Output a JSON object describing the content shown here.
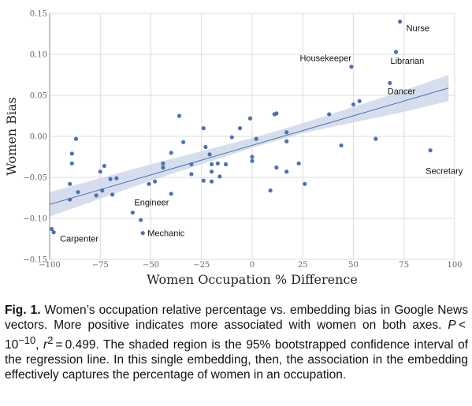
{
  "chart_data": {
    "type": "scatter",
    "xlabel": "Women Occupation % Difference",
    "ylabel": "Women Bias",
    "xlim": [
      -100,
      100
    ],
    "ylim": [
      -0.15,
      0.15
    ],
    "xticks": [
      -100,
      -75,
      -50,
      -25,
      0,
      25,
      50,
      75,
      100
    ],
    "yticks": [
      -0.15,
      -0.1,
      -0.05,
      0.0,
      0.05,
      0.1,
      0.15
    ],
    "xtick_labels": [
      "−100",
      "−75",
      "−50",
      "−25",
      "0",
      "25",
      "50",
      "75",
      "100"
    ],
    "ytick_labels": [
      "−0.15",
      "−0.10",
      "−0.05",
      "0.00",
      "0.05",
      "0.10",
      "0.15"
    ],
    "grid": true,
    "point_color": "#4c72b0",
    "band_color": "#c8d3e8",
    "regression": {
      "x": [
        -100,
        97
      ],
      "y": [
        -0.083,
        0.059
      ]
    },
    "band_upper": [
      [
        -100,
        -0.068
      ],
      [
        -75,
        -0.051
      ],
      [
        -50,
        -0.034
      ],
      [
        -25,
        -0.018
      ],
      [
        0,
        -0.002
      ],
      [
        25,
        0.016
      ],
      [
        50,
        0.036
      ],
      [
        75,
        0.056
      ],
      [
        97,
        0.075
      ]
    ],
    "band_lower": [
      [
        -100,
        -0.098
      ],
      [
        -75,
        -0.076
      ],
      [
        -50,
        -0.054
      ],
      [
        -25,
        -0.034
      ],
      [
        0,
        -0.014
      ],
      [
        25,
        0.004
      ],
      [
        50,
        0.017
      ],
      [
        75,
        0.03
      ],
      [
        97,
        0.043
      ]
    ],
    "points": [
      {
        "x": 73,
        "y": 0.14,
        "label": "Nurse"
      },
      {
        "x": 71,
        "y": 0.103,
        "label": "Librarian"
      },
      {
        "x": 68,
        "y": 0.065,
        "label": "Dancer"
      },
      {
        "x": 49,
        "y": 0.085,
        "label": "Housekeeper"
      },
      {
        "x": 88,
        "y": -0.017,
        "label": "Secretary"
      },
      {
        "x": -98,
        "y": -0.117,
        "label": "Carpenter"
      },
      {
        "x": -54,
        "y": -0.118,
        "label": "Mechanic"
      },
      {
        "x": -59,
        "y": -0.093,
        "label": "Engineer"
      },
      {
        "x": -99,
        "y": -0.113,
        "label": ""
      },
      {
        "x": -55,
        "y": -0.102,
        "label": ""
      },
      {
        "x": -87,
        "y": -0.003,
        "label": ""
      },
      {
        "x": -89,
        "y": -0.021,
        "label": ""
      },
      {
        "x": -89,
        "y": -0.033,
        "label": ""
      },
      {
        "x": -90,
        "y": -0.058,
        "label": ""
      },
      {
        "x": -90,
        "y": -0.077,
        "label": ""
      },
      {
        "x": -86,
        "y": -0.068,
        "label": ""
      },
      {
        "x": -77,
        "y": -0.072,
        "label": ""
      },
      {
        "x": -75,
        "y": -0.043,
        "label": ""
      },
      {
        "x": -73,
        "y": -0.036,
        "label": ""
      },
      {
        "x": -70,
        "y": -0.052,
        "label": ""
      },
      {
        "x": -67,
        "y": -0.051,
        "label": ""
      },
      {
        "x": -74,
        "y": -0.066,
        "label": ""
      },
      {
        "x": -69,
        "y": -0.071,
        "label": ""
      },
      {
        "x": -51,
        "y": -0.058,
        "label": ""
      },
      {
        "x": -48,
        "y": -0.055,
        "label": ""
      },
      {
        "x": -44,
        "y": -0.038,
        "label": ""
      },
      {
        "x": -44,
        "y": -0.033,
        "label": ""
      },
      {
        "x": -40,
        "y": -0.07,
        "label": ""
      },
      {
        "x": -40,
        "y": -0.02,
        "label": ""
      },
      {
        "x": -36,
        "y": 0.025,
        "label": ""
      },
      {
        "x": -34,
        "y": -0.007,
        "label": ""
      },
      {
        "x": -30,
        "y": -0.034,
        "label": ""
      },
      {
        "x": -30,
        "y": -0.046,
        "label": ""
      },
      {
        "x": -24,
        "y": 0.01,
        "label": ""
      },
      {
        "x": -23,
        "y": -0.013,
        "label": ""
      },
      {
        "x": -24,
        "y": -0.054,
        "label": ""
      },
      {
        "x": -21,
        "y": -0.022,
        "label": ""
      },
      {
        "x": -20,
        "y": -0.034,
        "label": ""
      },
      {
        "x": -20,
        "y": -0.043,
        "label": ""
      },
      {
        "x": -20,
        "y": -0.055,
        "label": ""
      },
      {
        "x": -17,
        "y": -0.033,
        "label": ""
      },
      {
        "x": -16,
        "y": -0.049,
        "label": ""
      },
      {
        "x": -13,
        "y": -0.034,
        "label": ""
      },
      {
        "x": -10,
        "y": -0.001,
        "label": ""
      },
      {
        "x": -6,
        "y": 0.01,
        "label": ""
      },
      {
        "x": -1,
        "y": 0.022,
        "label": ""
      },
      {
        "x": 0,
        "y": -0.025,
        "label": ""
      },
      {
        "x": 0,
        "y": -0.03,
        "label": ""
      },
      {
        "x": 2,
        "y": -0.003,
        "label": ""
      },
      {
        "x": 9,
        "y": -0.066,
        "label": ""
      },
      {
        "x": 11,
        "y": 0.027,
        "label": ""
      },
      {
        "x": 12,
        "y": 0.028,
        "label": ""
      },
      {
        "x": 12,
        "y": -0.038,
        "label": ""
      },
      {
        "x": 17,
        "y": 0.005,
        "label": ""
      },
      {
        "x": 17,
        "y": -0.006,
        "label": ""
      },
      {
        "x": 17,
        "y": -0.043,
        "label": ""
      },
      {
        "x": 23,
        "y": -0.033,
        "label": ""
      },
      {
        "x": 26,
        "y": -0.058,
        "label": ""
      },
      {
        "x": 38,
        "y": 0.027,
        "label": ""
      },
      {
        "x": 44,
        "y": -0.011,
        "label": ""
      },
      {
        "x": 50,
        "y": 0.039,
        "label": ""
      },
      {
        "x": 53,
        "y": 0.043,
        "label": ""
      },
      {
        "x": 61,
        "y": -0.003,
        "label": ""
      }
    ]
  },
  "caption": {
    "fig_label": "Fig. 1.",
    "text_1": " Women’s occupation relative percentage vs. embedding bias in Google News vectors. More positive indicates more associated with women on both axes. ",
    "stat_p": "P",
    "stat_p_rest": " < 10",
    "stat_p_exp": "−10",
    "stat_sep": ", ",
    "stat_r": "r",
    "stat_r_exp": "2",
    "stat_r_rest": " = 0.499",
    "text_2": ". The shaded region is the 95% bootstrapped confidence interval of the regression line. In this single embedding, then, the association in the embedding effectively captures the percentage of women in an occupation."
  }
}
